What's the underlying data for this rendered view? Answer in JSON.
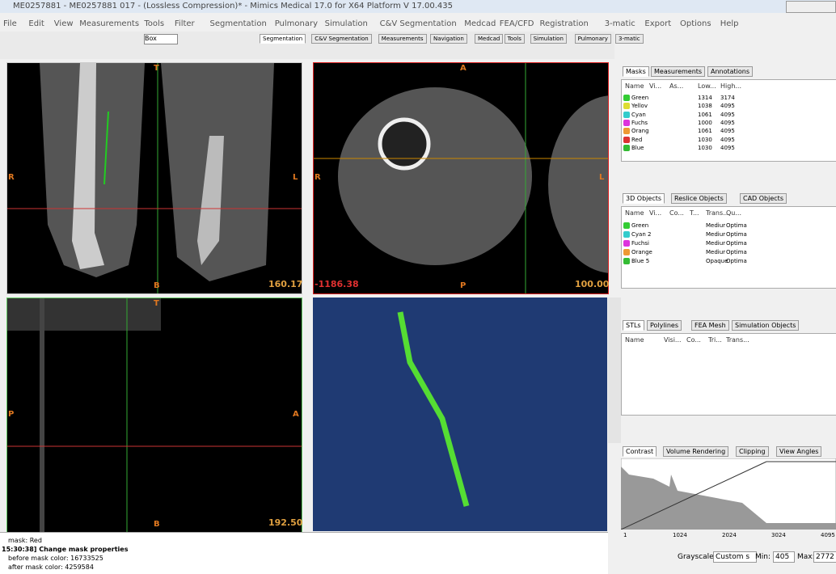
{
  "title": "ME0257881 - ME0257881 017 - (Lossless Compression)* - Mimics Medical 17.0 for X64 Platform V 17.00.435",
  "menu": [
    "File",
    "Edit",
    "View",
    "Measurements",
    "Tools",
    "Filter",
    "Segmentation",
    "Pulmonary",
    "Simulation",
    "C&V Segmentation",
    "Medcad",
    "FEA/CFD",
    "Registration",
    "3-matic",
    "Export",
    "Options",
    "Help"
  ],
  "toolbar": {
    "view_mode": "Box",
    "tabs": [
      "Segmentation",
      "C&V Segmentation",
      "Measurements",
      "Navigation",
      "Medcad",
      "Tools",
      "Simulation",
      "Pulmonary",
      "3-matic"
    ]
  },
  "viewports": [
    {
      "top": "T",
      "left": "R",
      "right": "L",
      "bottom": "B",
      "value": "160.17"
    },
    {
      "top": "A",
      "left": "R",
      "right": "L",
      "bottom": "P",
      "value_left": "-1186.38",
      "value": "100.00"
    },
    {
      "top": "T",
      "left": "P",
      "right": "A",
      "bottom": "B",
      "value": "192.50"
    }
  ],
  "masks": {
    "tabs": [
      "Masks",
      "Measurements",
      "Annotations"
    ],
    "columns": [
      "Name",
      "Vi...",
      "As...",
      "Low...",
      "High..."
    ],
    "rows": [
      [
        "Green",
        "1314",
        "3174"
      ],
      [
        "Yellov",
        "1038",
        "4095"
      ],
      [
        "Cyan",
        "1061",
        "4095"
      ],
      [
        "Fuchs",
        "1000",
        "4095"
      ],
      [
        "Orang",
        "1061",
        "4095"
      ],
      [
        "Red",
        "1030",
        "4095"
      ],
      [
        "Blue",
        "1030",
        "4095"
      ]
    ]
  },
  "objects": {
    "tabs": [
      "3D Objects",
      "Reslice Objects",
      "CAD Objects"
    ],
    "columns": [
      "Name",
      "Vi...",
      "Co...",
      "T...",
      "Trans...",
      "Qu..."
    ],
    "rows": [
      [
        "Green",
        "Mediur",
        "Optima"
      ],
      [
        "Cyan 2",
        "Mediur",
        "Optima"
      ],
      [
        "Fuchsi",
        "Mediur",
        "Optima"
      ],
      [
        "Orange",
        "Mediur",
        "Optima"
      ],
      [
        "Blue 5",
        "Opaque",
        "Optima"
      ]
    ]
  },
  "stls": {
    "tabs": [
      "STLs",
      "Polylines",
      "FEA Mesh",
      "Simulation Objects"
    ],
    "columns": [
      "Name",
      "Visi...",
      "Co...",
      "Tri...",
      "Trans..."
    ]
  },
  "contrast": {
    "tabs": [
      "Contrast",
      "Volume Rendering",
      "Clipping",
      "View Angles"
    ],
    "axis": [
      "1",
      "1024",
      "2024",
      "3024",
      "4095"
    ],
    "grayscale_label": "Grayscale:",
    "grayscale": "Custom s",
    "min_label": "Min:",
    "min": "405",
    "max_label": "Max:",
    "max": "2772"
  },
  "log": [
    "mask: Red",
    "15:30:38] Change mask properties",
    "before mask color: 16733525",
    "after mask color: 4259584"
  ]
}
